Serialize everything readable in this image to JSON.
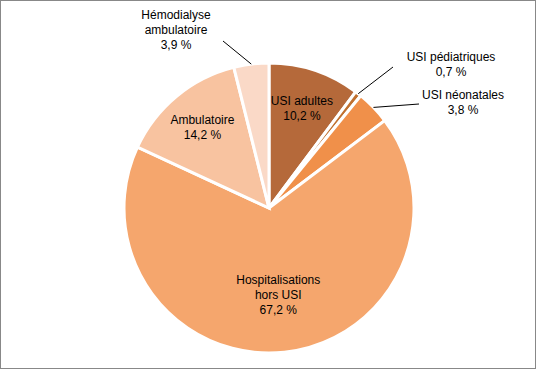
{
  "chart_data": {
    "type": "pie",
    "categories": [
      "USI adultes",
      "USI pédiatriques",
      "USI néonatales",
      "Hospitalisations hors USI",
      "Ambulatoire",
      "Hémodialyse ambulatoire"
    ],
    "values": [
      10.2,
      0.7,
      3.8,
      67.2,
      14.2,
      3.9
    ],
    "value_labels": [
      "10,2 %",
      "0,7 %",
      "3,8 %",
      "67,2 %",
      "14,2 %",
      "3,9 %"
    ],
    "colors": [
      "#B5693A",
      "#C0702F",
      "#F0904A",
      "#F5A66D",
      "#F8C3A0",
      "#FAD9C7"
    ],
    "data_labels": true
  }
}
